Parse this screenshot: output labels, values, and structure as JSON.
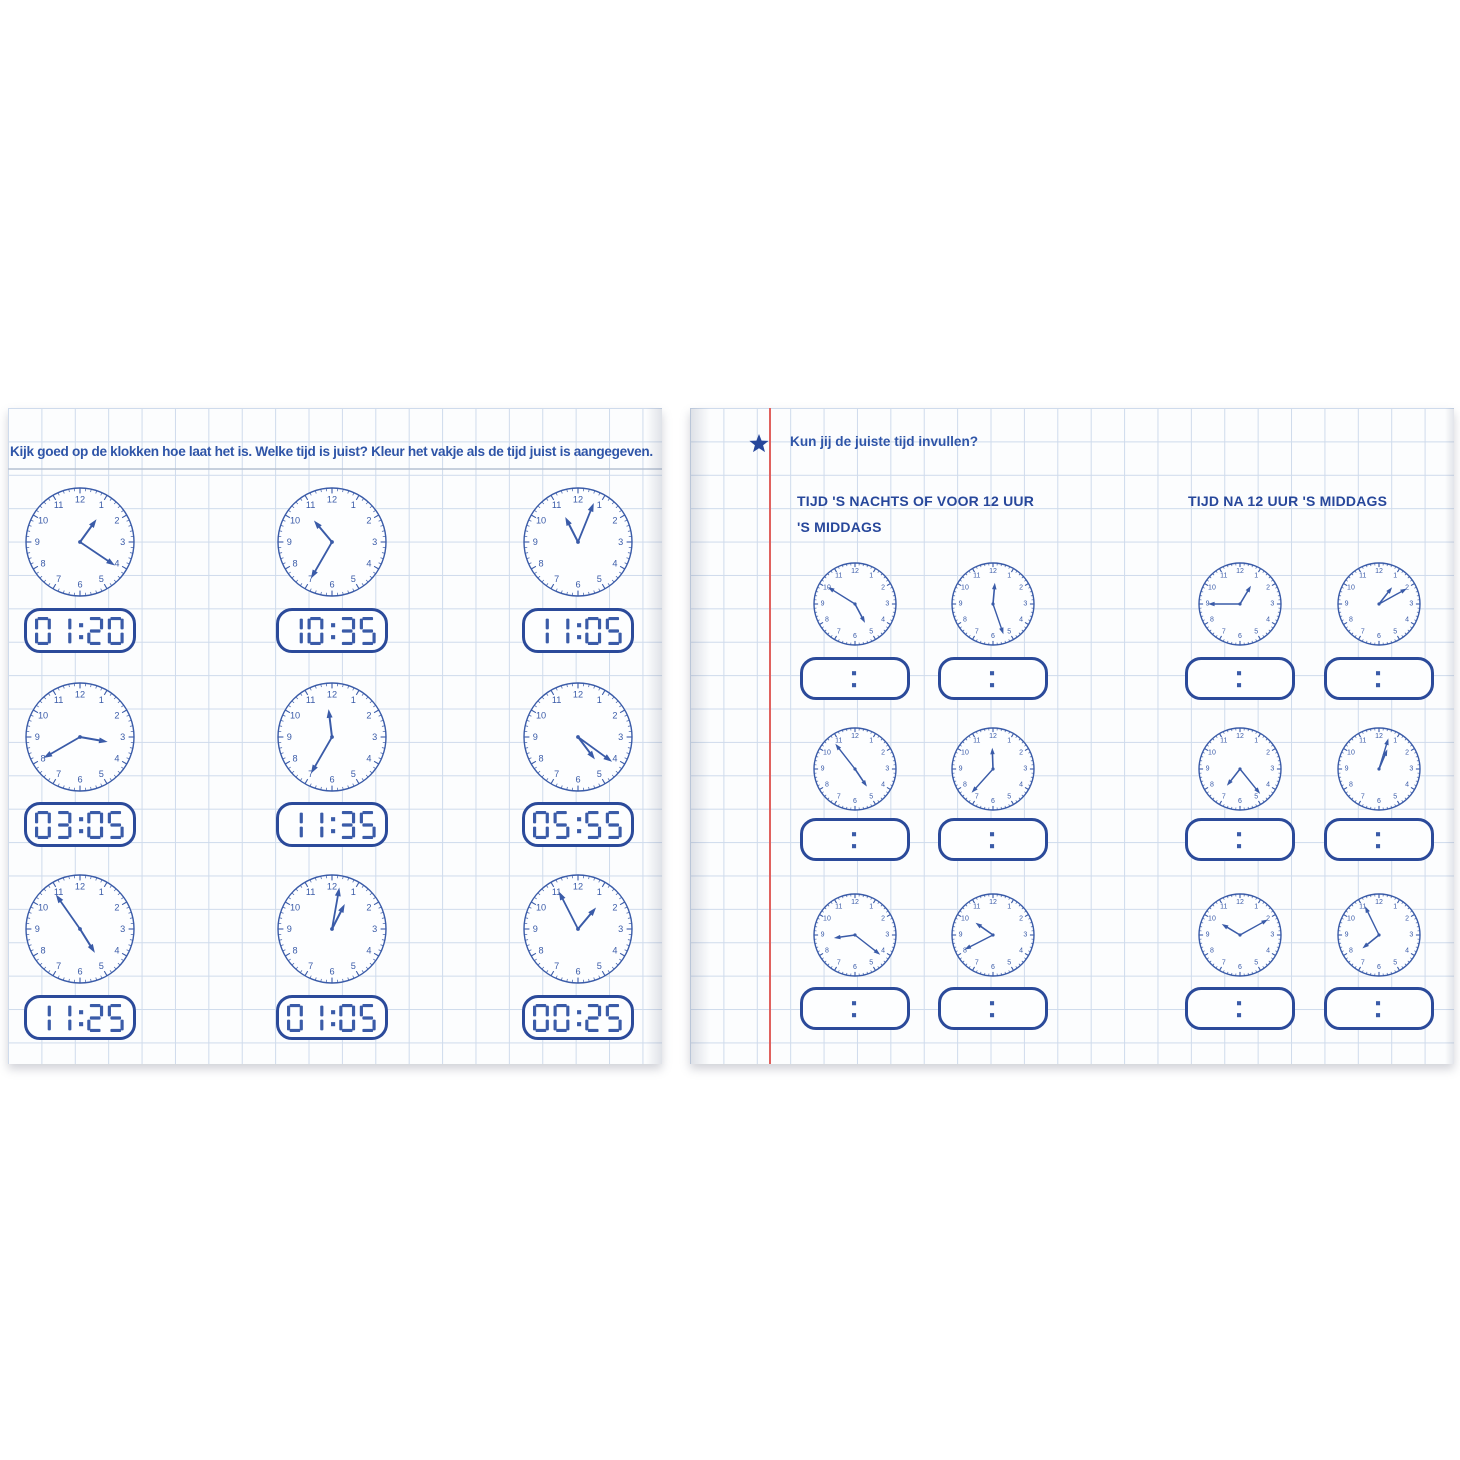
{
  "colors": {
    "ink": "#3a5ba8",
    "navy": "#27479b",
    "text_blue": "#2f55a8",
    "grid_blue": "#cfdbec",
    "margin_red": "#e0615e",
    "page_bg": "#fcfdfe"
  },
  "clock_numerals": [
    "1",
    "2",
    "3",
    "4",
    "5",
    "6",
    "7",
    "8",
    "9",
    "10",
    "11",
    "12"
  ],
  "page_left": {
    "instruction": "Kijk goed op de klokken hoe laat het is. Welke tijd is juist? Kleur het vakje als de tijd juist is aangegeven.",
    "clocks": [
      {
        "hour_angle": 36,
        "minute_angle": 124,
        "digital": "01:20"
      },
      {
        "hour_angle": 320,
        "minute_angle": 210,
        "digital": "10:35"
      },
      {
        "hour_angle": 333,
        "minute_angle": 22,
        "digital": "11:05"
      },
      {
        "hour_angle": 100,
        "minute_angle": 240,
        "digital": "03:05"
      },
      {
        "hour_angle": 353,
        "minute_angle": 210,
        "digital": "11:35"
      },
      {
        "hour_angle": 143,
        "minute_angle": 126,
        "digital": "05:55"
      },
      {
        "hour_angle": 148,
        "minute_angle": 325,
        "digital": "11:25"
      },
      {
        "hour_angle": 27,
        "minute_angle": 10,
        "digital": "01:05"
      },
      {
        "hour_angle": 40,
        "minute_angle": 333,
        "digital": "00:25"
      }
    ]
  },
  "page_right": {
    "prompt": "Kun jij de juiste tijd invullen?",
    "star_icon": "star-icon",
    "answer_placeholder": ":",
    "columns": [
      {
        "title_line1": "TIJD 'S NACHTS OF VOOR 12 UUR",
        "title_line2": "'S MIDDAGS",
        "clocks": [
          {
            "hour_angle": 152,
            "minute_angle": 302
          },
          {
            "hour_angle": 5,
            "minute_angle": 161
          },
          {
            "hour_angle": 146,
            "minute_angle": 322
          },
          {
            "hour_angle": 358,
            "minute_angle": 222
          },
          {
            "hour_angle": 262,
            "minute_angle": 128
          },
          {
            "hour_angle": 305,
            "minute_angle": 243
          }
        ]
      },
      {
        "title_line1": "TIJD NA 12 UUR 'S MIDDAGS",
        "title_line2": "",
        "clocks": [
          {
            "hour_angle": 31,
            "minute_angle": 270
          },
          {
            "hour_angle": 38,
            "minute_angle": 61
          },
          {
            "hour_angle": 218,
            "minute_angle": 141
          },
          {
            "hour_angle": 23,
            "minute_angle": 17
          },
          {
            "hour_angle": 301,
            "minute_angle": 61
          },
          {
            "hour_angle": 231,
            "minute_angle": 334
          }
        ]
      }
    ]
  }
}
